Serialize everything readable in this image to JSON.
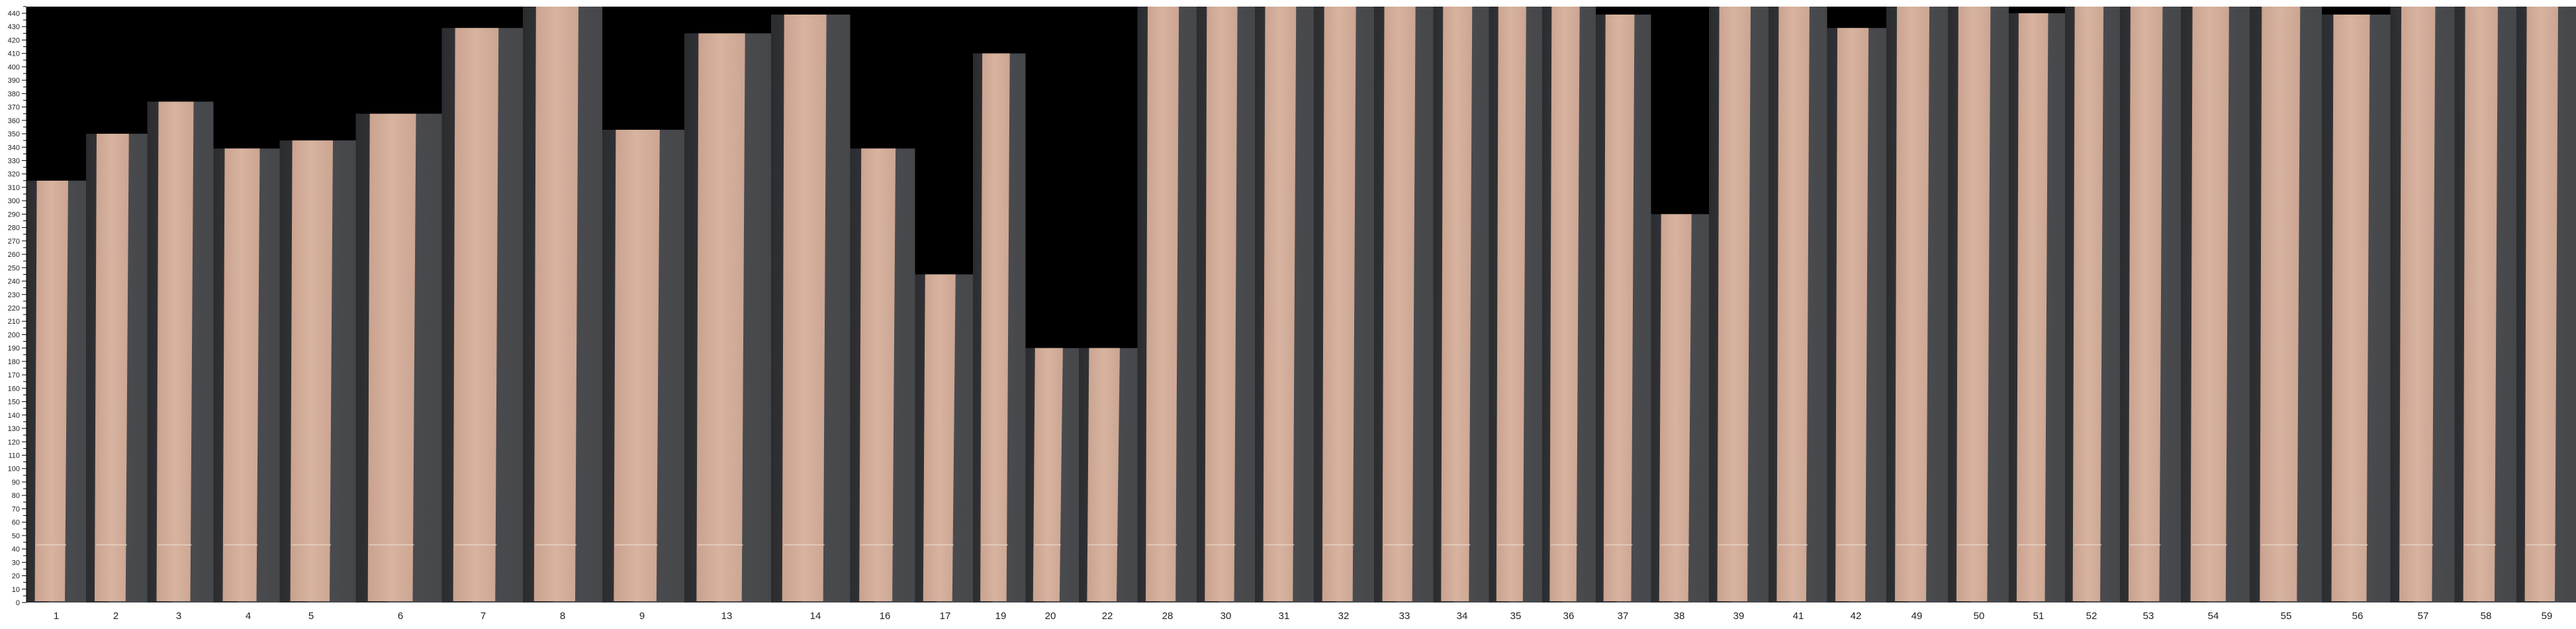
{
  "chart_data": {
    "type": "bar",
    "categories": [
      "1",
      "2",
      "3",
      "4",
      "5",
      "6",
      "7",
      "8",
      "9",
      "13",
      "14",
      "16",
      "17",
      "19",
      "20",
      "22",
      "28",
      "30",
      "31",
      "32",
      "33",
      "34",
      "35",
      "36",
      "37",
      "38",
      "39",
      "41",
      "42",
      "49",
      "50",
      "51",
      "52",
      "53",
      "54",
      "55",
      "56",
      "57",
      "58",
      "59"
    ],
    "values": [
      315,
      350,
      374,
      339,
      345,
      365,
      429,
      445,
      353,
      425,
      439,
      339,
      245,
      410,
      190,
      190,
      445,
      445,
      445,
      445,
      445,
      445,
      445,
      445,
      439,
      290,
      445,
      445,
      429,
      445,
      445,
      440,
      445,
      445,
      445,
      445,
      439,
      445,
      445,
      445
    ],
    "ylim": [
      0,
      445
    ],
    "yticks_major_step": 10,
    "yticks_minor_step": 5,
    "grid": false,
    "legend": "none",
    "bar_style": "wood veneer strip photos with dark shadow band",
    "colors": {
      "background": "#000000",
      "wood": "#d2ab97",
      "wood_dark": "#c39c87",
      "shadow": "#4a4b4f",
      "shadow_dark": "#2e2f32",
      "axis": "#000000"
    }
  }
}
